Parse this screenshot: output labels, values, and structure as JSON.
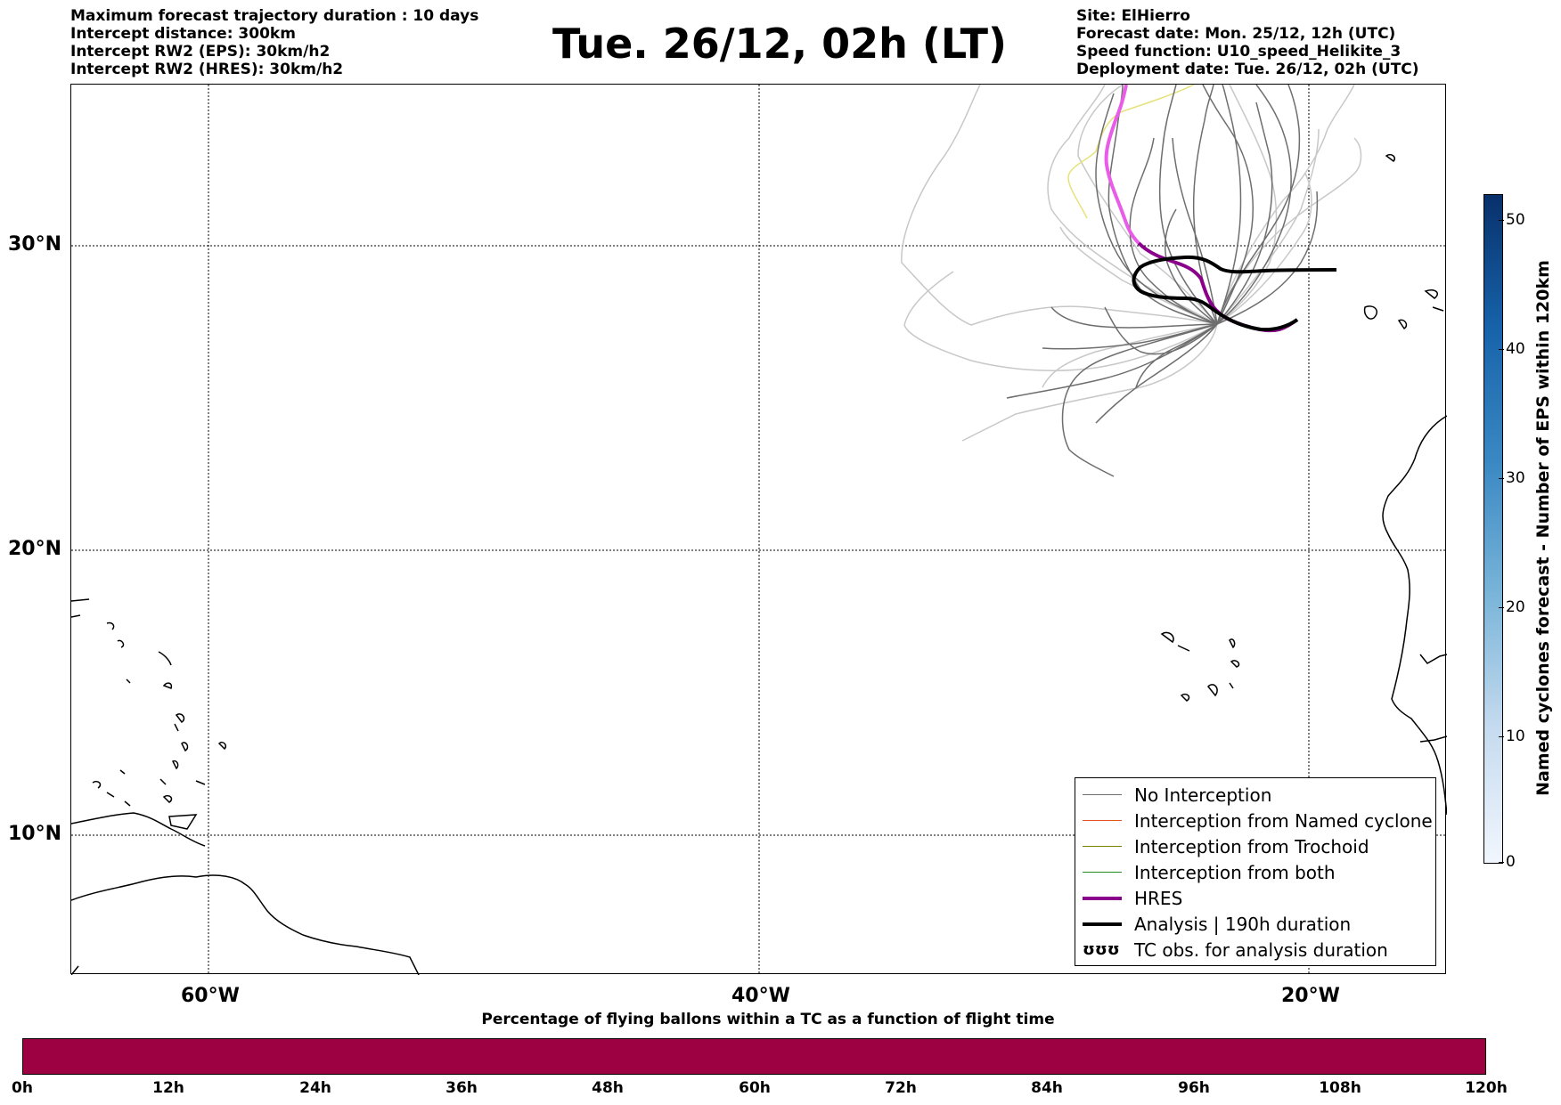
{
  "header_left": {
    "line1": "Maximum forecast trajectory duration : 10 days",
    "line2": "Intercept distance: 300km",
    "line3": "Intercept RW2 (EPS):  30km/h2",
    "line4": "Intercept RW2 (HRES): 30km/h2"
  },
  "title": "Tue. 26/12, 02h (LT)",
  "header_right": {
    "line1": "Site: ElHierro",
    "line2": "Forecast date: Mon. 25/12, 12h (UTC)",
    "line3": "Speed function: U10_speed_Helikite_3",
    "line4": "Deployment date: Tue. 26/12, 02h (UTC)"
  },
  "map": {
    "lat_labels": [
      "30°N",
      "20°N",
      "10°N"
    ],
    "lon_labels": [
      "60°W",
      "40°W",
      "20°W"
    ],
    "colors": {
      "no_interception": "#6e6e6e",
      "eps_light": "#c8c8c8",
      "hres": "#8b008b",
      "hres_early": "#e85ce8",
      "analysis": "#000000",
      "yellow_member": "#e6e27a",
      "named_cyclone": "#e8541e",
      "trochoid": "#808000",
      "both": "#228b22"
    }
  },
  "legend": {
    "items": [
      {
        "label": "No Interception",
        "color": "#6e6e6e",
        "width": 1
      },
      {
        "label": "Interception from Named cyclone",
        "color": "#e8541e",
        "width": 1
      },
      {
        "label": "Interception from Trochoid",
        "color": "#808000",
        "width": 1
      },
      {
        "label": "Interception from both",
        "color": "#228b22",
        "width": 1
      },
      {
        "label": "HRES",
        "color": "#8b008b",
        "width": 4
      },
      {
        "label": "Analysis | 190h duration",
        "color": "#000000",
        "width": 4
      },
      {
        "label": "TC obs. for analysis duration",
        "symbol": "ʊʊʊ"
      }
    ]
  },
  "colorbar_vertical": {
    "label": "Named cyclones forecast - Number of EPS within 120km",
    "ticks": [
      "50",
      "40",
      "30",
      "20",
      "10",
      "0"
    ]
  },
  "colorbar_horizontal": {
    "title": "Percentage of flying ballons within a TC as a function of flight time",
    "ticks": [
      "0h",
      "12h",
      "24h",
      "36h",
      "48h",
      "60h",
      "72h",
      "84h",
      "96h",
      "108h",
      "120h"
    ],
    "fill_color": "#9e0142"
  }
}
